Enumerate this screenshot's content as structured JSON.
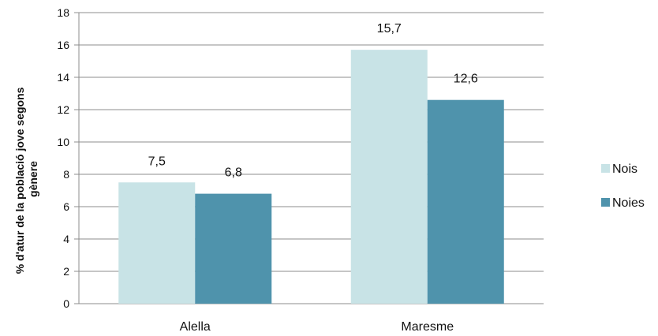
{
  "chart_data": {
    "type": "bar",
    "categories": [
      "Alella",
      "Maresme"
    ],
    "series": [
      {
        "name": "Nois",
        "values": [
          7.5,
          15.7
        ],
        "color": "#c8e3e6"
      },
      {
        "name": "Noies",
        "values": [
          6.8,
          12.6
        ],
        "color": "#4f93ac"
      }
    ],
    "data_labels": [
      [
        "7,5",
        "15,7"
      ],
      [
        "6,8",
        "12,6"
      ]
    ],
    "y_ticks": [
      "0",
      "2",
      "4",
      "6",
      "8",
      "10",
      "12",
      "14",
      "16",
      "18"
    ],
    "ylabel_lines": [
      "% d'atur de la població jove segons",
      "gènere"
    ],
    "ylim": [
      0,
      18
    ],
    "grid": true,
    "legend_position": "right"
  }
}
